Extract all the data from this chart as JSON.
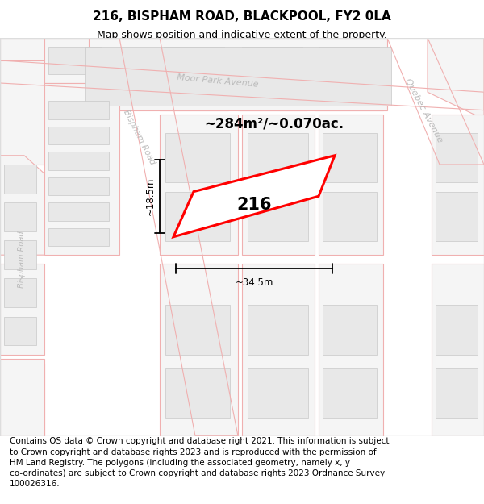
{
  "title": "216, BISPHAM ROAD, BLACKPOOL, FY2 0LA",
  "subtitle": "Map shows position and indicative extent of the property.",
  "footer": "Contains OS data © Crown copyright and database right 2021. This information is subject\nto Crown copyright and database rights 2023 and is reproduced with the permission of\nHM Land Registry. The polygons (including the associated geometry, namely x, y\nco-ordinates) are subject to Crown copyright and database rights 2023 Ordnance Survey\n100026316.",
  "area_text": "~284m²/~0.070ac.",
  "width_text": "~34.5m",
  "height_text": "~18.5m",
  "plot_label": "216",
  "map_bg": "#f8f8f8",
  "road_bg": "#ffffff",
  "building_fill": "#e8e8e8",
  "building_edge": "#c8c8c8",
  "block_outline": "#f0b0b0",
  "highlight_fill": "#ffffff",
  "highlight_edge": "#ff0000",
  "road_label_color": "#bbbbbb",
  "title_fontsize": 11,
  "subtitle_fontsize": 9,
  "footer_fontsize": 7.5
}
